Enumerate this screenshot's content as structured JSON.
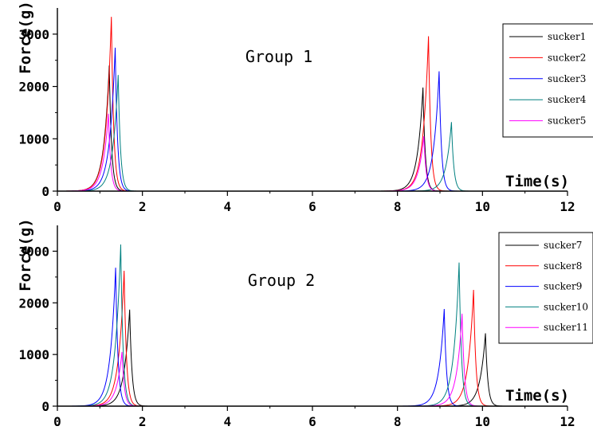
{
  "chart_data": [
    {
      "type": "line",
      "title": "Group 1",
      "xlabel": "Time(s)",
      "ylabel": "Force(g)",
      "xlim": [
        0,
        12
      ],
      "ylim": [
        0,
        3500
      ],
      "xticks": [
        0,
        2,
        4,
        6,
        8,
        10,
        12
      ],
      "yticks": [
        0,
        1000,
        2000,
        3000
      ],
      "grid": false,
      "legend_position": "top-right",
      "series": [
        {
          "name": "sucker1",
          "color": "#000000",
          "peaks": [
            {
              "t": 1.22,
              "peak": 2400
            },
            {
              "t": 8.6,
              "peak": 1980
            }
          ],
          "x_end": 11.2
        },
        {
          "name": "sucker2",
          "color": "#ff0000",
          "peaks": [
            {
              "t": 1.27,
              "peak": 3330
            },
            {
              "t": 8.73,
              "peak": 2960
            }
          ],
          "x_end": 11.2
        },
        {
          "name": "sucker3",
          "color": "#0000ff",
          "peaks": [
            {
              "t": 1.36,
              "peak": 2740
            },
            {
              "t": 8.98,
              "peak": 2290
            }
          ],
          "x_end": 11.2
        },
        {
          "name": "sucker4",
          "color": "#008080",
          "peaks": [
            {
              "t": 1.43,
              "peak": 2220
            },
            {
              "t": 9.27,
              "peak": 1320
            }
          ],
          "x_end": 10.7
        },
        {
          "name": "sucker5",
          "color": "#ff00ff",
          "peaks": [
            {
              "t": 1.2,
              "peak": 1480
            },
            {
              "t": 8.62,
              "peak": 1050
            }
          ],
          "x_end": 10.7
        }
      ]
    },
    {
      "type": "line",
      "title": "Group 2",
      "xlabel": "Time(s)",
      "ylabel": "Force(g)",
      "xlim": [
        0,
        12
      ],
      "ylim": [
        0,
        3500
      ],
      "xticks": [
        0,
        2,
        4,
        6,
        8,
        10,
        12
      ],
      "yticks": [
        0,
        1000,
        2000,
        3000
      ],
      "grid": false,
      "legend_position": "top-right",
      "series": [
        {
          "name": "sucker7",
          "color": "#000000",
          "peaks": [
            {
              "t": 1.7,
              "peak": 1870
            },
            {
              "t": 10.07,
              "peak": 1410
            }
          ],
          "x_end": 11.7
        },
        {
          "name": "sucker8",
          "color": "#ff0000",
          "peaks": [
            {
              "t": 1.57,
              "peak": 2620
            },
            {
              "t": 9.79,
              "peak": 2250
            }
          ],
          "x_end": 11.7
        },
        {
          "name": "sucker9",
          "color": "#0000ff",
          "peaks": [
            {
              "t": 1.37,
              "peak": 2680
            },
            {
              "t": 9.1,
              "peak": 1880
            }
          ],
          "x_end": 11.7
        },
        {
          "name": "sucker10",
          "color": "#008080",
          "peaks": [
            {
              "t": 1.49,
              "peak": 3130
            },
            {
              "t": 9.45,
              "peak": 2780
            }
          ],
          "x_end": 11.7
        },
        {
          "name": "sucker11",
          "color": "#ff00ff",
          "peaks": [
            {
              "t": 1.52,
              "peak": 1050
            },
            {
              "t": 9.52,
              "peak": 1790
            }
          ],
          "x_end": 11.7
        }
      ]
    }
  ]
}
